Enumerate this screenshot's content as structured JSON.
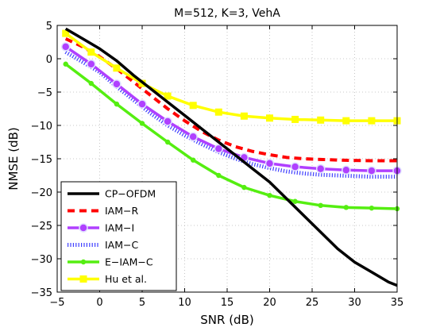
{
  "chart_data": {
    "type": "line",
    "title": "M=512, K=3, VehA",
    "xlabel": "SNR (dB)",
    "ylabel": "NMSE (dB)",
    "xlim": [
      -5,
      35
    ],
    "ylim": [
      -35,
      5
    ],
    "xticks": [
      -5,
      0,
      5,
      10,
      15,
      20,
      25,
      30,
      35
    ],
    "yticks": [
      5,
      0,
      -5,
      -10,
      -15,
      -20,
      -25,
      -30,
      -35
    ],
    "xtick_labels": [
      "−5",
      "0",
      "5",
      "10",
      "15",
      "20",
      "25",
      "30",
      "35"
    ],
    "ytick_labels": [
      "5",
      "0",
      "−5",
      "−10",
      "−15",
      "−20",
      "−25",
      "−30",
      "−35"
    ],
    "grid": true,
    "legend_position": "bottom-left",
    "series": [
      {
        "name": "CP−OFDM",
        "color": "#000000",
        "style": "solid",
        "marker": "none",
        "x": [
          -4,
          -2,
          0,
          2,
          4,
          6,
          8,
          10,
          12,
          14,
          16,
          18,
          20,
          22,
          24,
          26,
          28,
          30,
          32,
          34,
          35
        ],
        "y": [
          4.5,
          3.0,
          1.5,
          -0.3,
          -2.5,
          -4.5,
          -6.5,
          -8.5,
          -10.5,
          -12.5,
          -14.5,
          -16.5,
          -18.5,
          -21.0,
          -23.5,
          -26.0,
          -28.5,
          -30.5,
          -32.0,
          -33.5,
          -34.0
        ]
      },
      {
        "name": "IAM−R",
        "color": "#ff0000",
        "style": "dashed",
        "marker": "none",
        "x": [
          -4,
          -2,
          0,
          2,
          4,
          6,
          8,
          10,
          12,
          14,
          16,
          18,
          20,
          22,
          24,
          26,
          28,
          30,
          32,
          34,
          35
        ],
        "y": [
          3.0,
          1.8,
          0.3,
          -1.5,
          -3.5,
          -5.5,
          -7.5,
          -9.3,
          -10.9,
          -12.2,
          -13.2,
          -13.9,
          -14.4,
          -14.8,
          -15.0,
          -15.1,
          -15.2,
          -15.25,
          -15.3,
          -15.3,
          -15.3
        ]
      },
      {
        "name": "IAM−I",
        "color": "#b040ff",
        "style": "solid",
        "marker": "circle",
        "x": [
          -4,
          -1,
          2,
          5,
          8,
          11,
          14,
          17,
          20,
          23,
          26,
          29,
          32,
          35
        ],
        "y": [
          1.8,
          -0.8,
          -3.8,
          -6.8,
          -9.4,
          -11.7,
          -13.5,
          -14.8,
          -15.7,
          -16.2,
          -16.5,
          -16.7,
          -16.8,
          -16.8
        ]
      },
      {
        "name": "IAM−C",
        "color": "#4040ff",
        "style": "dotted",
        "marker": "none",
        "x": [
          -4,
          -2,
          0,
          2,
          4,
          6,
          8,
          10,
          12,
          14,
          16,
          18,
          20,
          22,
          24,
          26,
          28,
          30,
          32,
          34,
          35
        ],
        "y": [
          1.0,
          -0.5,
          -2.0,
          -4.2,
          -6.2,
          -8.2,
          -10.0,
          -11.5,
          -12.8,
          -14.0,
          -15.0,
          -15.8,
          -16.4,
          -16.9,
          -17.2,
          -17.4,
          -17.5,
          -17.6,
          -17.7,
          -17.7,
          -17.7
        ]
      },
      {
        "name": "E−IAM−C",
        "color": "#55ee11",
        "style": "solid",
        "marker": "dot",
        "x": [
          -4,
          -1,
          2,
          5,
          8,
          11,
          14,
          17,
          20,
          23,
          26,
          29,
          32,
          35
        ],
        "y": [
          -0.8,
          -3.7,
          -6.8,
          -9.7,
          -12.5,
          -15.2,
          -17.5,
          -19.3,
          -20.5,
          -21.4,
          -22.0,
          -22.3,
          -22.4,
          -22.5
        ]
      },
      {
        "name": "Hu et al.",
        "color": "#ffff00",
        "style": "solid",
        "marker": "square",
        "x": [
          -4,
          -1,
          2,
          5,
          8,
          11,
          14,
          17,
          20,
          23,
          26,
          29,
          32,
          35
        ],
        "y": [
          3.8,
          1.0,
          -1.4,
          -3.7,
          -5.6,
          -7.0,
          -8.0,
          -8.6,
          -8.9,
          -9.1,
          -9.2,
          -9.3,
          -9.3,
          -9.3
        ]
      }
    ]
  }
}
